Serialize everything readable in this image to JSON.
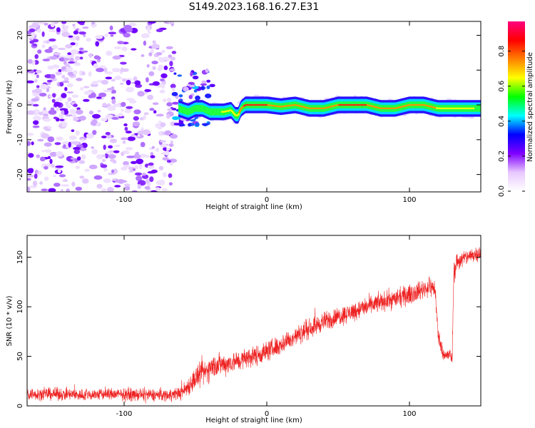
{
  "title": "S149.2023.168.16.27.E31",
  "chart_data": [
    {
      "type": "heatmap",
      "xlabel": "Height of straight line (km)",
      "ylabel": "Frequency (Hz)",
      "xlim": [
        -168,
        150
      ],
      "ylim": [
        -25,
        24
      ],
      "xticks": [
        -100,
        0,
        100
      ],
      "yticks": [
        -20,
        -10,
        0,
        10,
        20
      ],
      "colorbar": {
        "label": "Normalized spectral amplitude",
        "range": [
          0.0,
          0.97
        ],
        "ticks": [
          0.0,
          0.2,
          0.4,
          0.6,
          0.8
        ],
        "colors": [
          "#ffffff",
          "#e8c8ff",
          "#8000ff",
          "#0000ff",
          "#00ffff",
          "#00ff00",
          "#ffff00",
          "#ff8000",
          "#ff0000",
          "#ff0080"
        ]
      },
      "regions": [
        {
          "name": "noise",
          "x_range": [
            -168,
            -65
          ],
          "freq_range": [
            -25,
            24
          ],
          "amplitude": 0.05
        },
        {
          "name": "transition",
          "x_range": [
            -65,
            -38
          ],
          "freq_range": [
            -6,
            10
          ],
          "amplitude": 0.25
        }
      ],
      "ridge": {
        "x": [
          -62,
          -55,
          -50,
          -45,
          -40,
          -35,
          -30,
          -25,
          -22,
          -20,
          -18,
          -15,
          -10,
          0,
          10,
          20,
          30,
          40,
          50,
          60,
          70,
          80,
          90,
          100,
          110,
          120,
          130,
          140,
          150
        ],
        "freq": [
          -1,
          -2,
          -1,
          -1,
          -2,
          -2,
          -2,
          -1.5,
          -3,
          -3,
          -1,
          0,
          0,
          0,
          -0.5,
          0,
          -1,
          -1,
          0,
          0,
          0,
          -1,
          -1,
          0,
          0,
          -1,
          -1,
          -1,
          -1
        ],
        "amplitude": [
          0.2,
          0.3,
          0.35,
          0.35,
          0.4,
          0.5,
          0.6,
          0.6,
          0.65,
          0.7,
          0.8,
          0.9,
          0.9,
          0.85,
          0.8,
          0.85,
          0.8,
          0.75,
          0.85,
          0.95,
          0.85,
          0.8,
          0.75,
          0.8,
          0.8,
          0.7,
          0.6,
          0.6,
          0.5
        ]
      }
    },
    {
      "type": "line",
      "xlabel": "Height of straight line (km)",
      "ylabel": "SNR (10 * v/v)",
      "xlim": [
        -168,
        150
      ],
      "ylim": [
        0,
        172
      ],
      "xticks": [
        -100,
        0,
        100
      ],
      "yticks": [
        0,
        50,
        100,
        150
      ],
      "series": [
        {
          "color": "#ee2222",
          "x": [
            -168,
            -150,
            -130,
            -110,
            -90,
            -70,
            -60,
            -55,
            -50,
            -45,
            -40,
            -35,
            -30,
            -25,
            -20,
            -15,
            -10,
            -5,
            0,
            10,
            20,
            30,
            40,
            50,
            60,
            70,
            80,
            90,
            100,
            105,
            110,
            115,
            118,
            120,
            123,
            126,
            128,
            130,
            131,
            133,
            140,
            150
          ],
          "y": [
            12,
            12,
            11,
            12,
            11,
            11,
            13,
            20,
            28,
            32,
            38,
            42,
            42,
            44,
            45,
            48,
            50,
            52,
            55,
            62,
            70,
            78,
            85,
            90,
            95,
            100,
            105,
            108,
            112,
            115,
            118,
            120,
            118,
            72,
            55,
            50,
            52,
            48,
            130,
            145,
            150,
            155
          ],
          "spread": [
            9,
            9,
            9,
            9,
            9,
            9,
            10,
            14,
            18,
            18,
            18,
            18,
            16,
            16,
            15,
            15,
            15,
            15,
            15,
            15,
            14,
            14,
            14,
            14,
            14,
            14,
            14,
            14,
            14,
            14,
            14,
            14,
            14,
            14,
            10,
            10,
            10,
            10,
            14,
            14,
            12,
            12
          ]
        }
      ]
    }
  ]
}
